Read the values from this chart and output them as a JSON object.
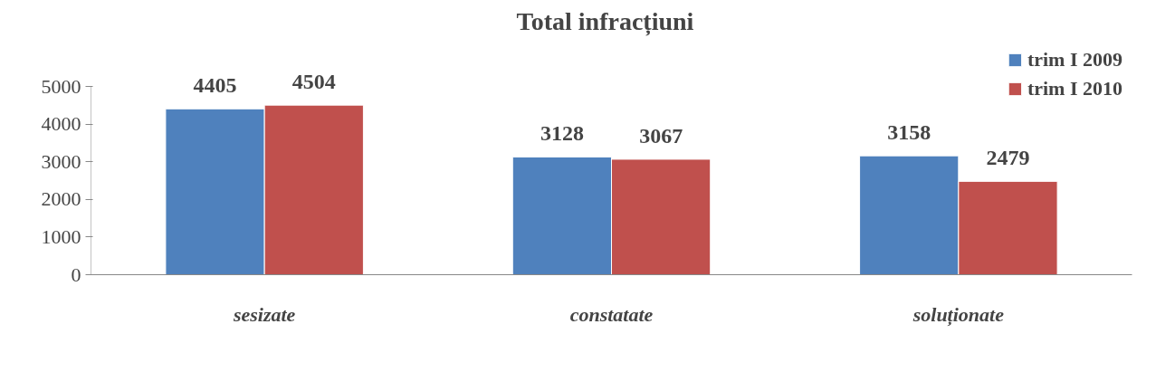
{
  "chart_data": {
    "type": "bar",
    "title": "Total   infracțiuni",
    "categories": [
      "sesizate",
      "constatate",
      "soluționate"
    ],
    "series": [
      {
        "name": "trim I 2009",
        "color": "#4f81bd",
        "values": [
          4405,
          3128,
          3158
        ]
      },
      {
        "name": "trim I 2010",
        "color": "#c0504d",
        "values": [
          4504,
          3067,
          2479
        ]
      }
    ],
    "ylim": [
      0,
      5000
    ],
    "yticks": [
      0,
      1000,
      2000,
      3000,
      4000,
      5000
    ],
    "grid": false,
    "legend": "top right",
    "data_labels": true
  }
}
